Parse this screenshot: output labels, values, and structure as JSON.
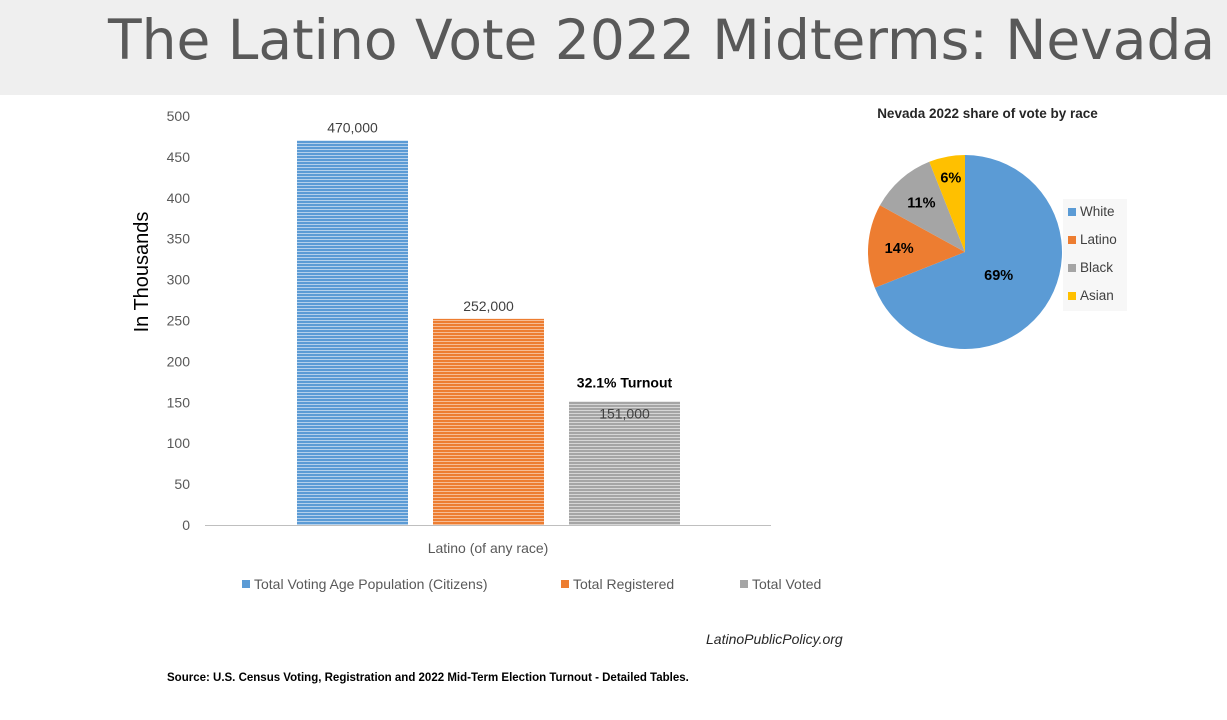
{
  "title": "The Latino Vote 2022 Midterms: Nevada",
  "source": "Source: U.S. Census Voting, Registration and 2022 Mid-Term Election Turnout - Detailed Tables.",
  "watermark": "LatinoPublicPolicy.org",
  "chart_data": [
    {
      "type": "bar",
      "ylabel": "In Thousands",
      "xlabel": "Latino (of any race)",
      "ylim": [
        0,
        500
      ],
      "yticks": [
        "0",
        "50",
        "100",
        "150",
        "200",
        "250",
        "300",
        "350",
        "400",
        "450",
        "500"
      ],
      "grid": false,
      "legend": "bottom",
      "series": [
        {
          "name": "Total Voting Age Population (Citizens)",
          "value": 470,
          "label": "470,000",
          "color": "#5b9bd5"
        },
        {
          "name": "Total Registered",
          "value": 252,
          "label": "252,000",
          "color": "#ed7d31"
        },
        {
          "name": "Total Voted",
          "value": 151,
          "label": "151,000",
          "color": "#a5a5a5"
        }
      ],
      "annotation": "32.1% Turnout"
    },
    {
      "type": "pie",
      "title": "Nevada 2022 share of  vote by race",
      "legend": "right",
      "slices": [
        {
          "name": "White",
          "value": 69,
          "label": "69%",
          "color": "#5b9bd5"
        },
        {
          "name": "Latino",
          "value": 14,
          "label": "14%",
          "color": "#ed7d31"
        },
        {
          "name": "Black",
          "value": 11,
          "label": "11%",
          "color": "#a5a5a5"
        },
        {
          "name": "Asian",
          "value": 6,
          "label": "6%",
          "color": "#ffc000"
        }
      ]
    }
  ]
}
